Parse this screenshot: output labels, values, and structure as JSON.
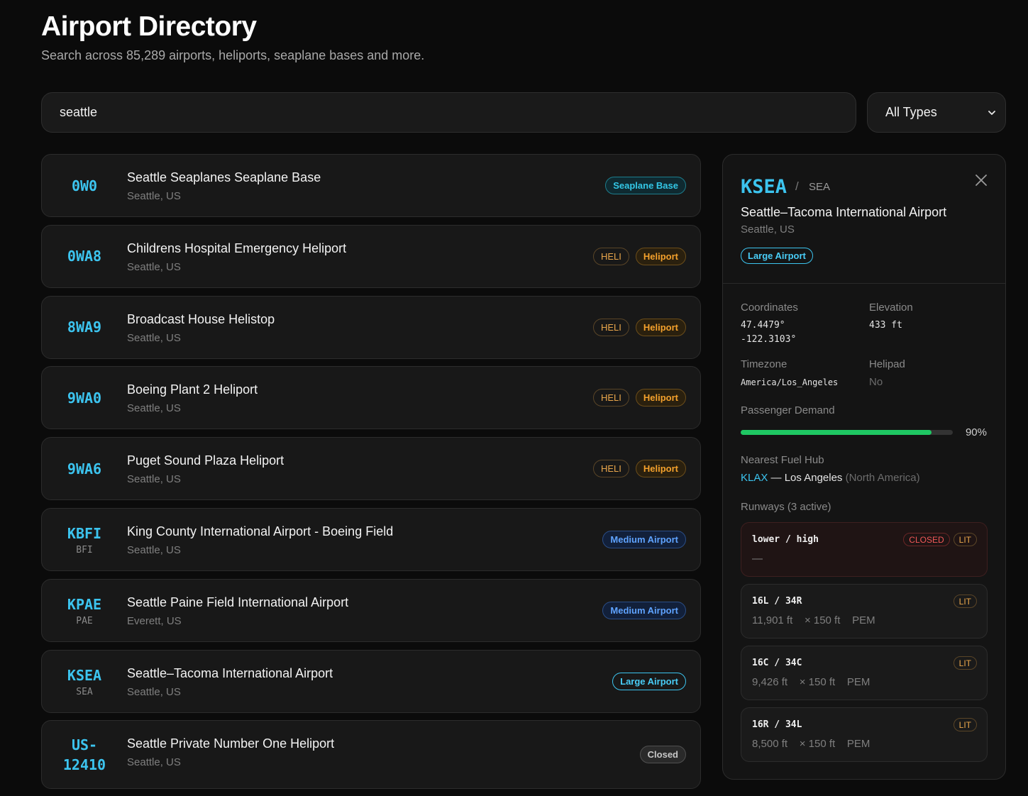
{
  "header": {
    "title": "Airport Directory",
    "subtitle": "Search across 85,289 airports, heliports, seaplane bases and more."
  },
  "search": {
    "value": "seattle",
    "placeholder": ""
  },
  "type_filter": {
    "selected": "All Types"
  },
  "results": [
    {
      "code": "0W0",
      "iata": "",
      "name": "Seattle Seaplanes Seaplane Base",
      "location": "Seattle, US",
      "badges": [
        {
          "text": "Seaplane Base",
          "kind": "seaplane"
        }
      ]
    },
    {
      "code": "0WA8",
      "iata": "",
      "name": "Childrens Hospital Emergency Heliport",
      "location": "Seattle, US",
      "badges": [
        {
          "text": "HELI",
          "kind": "helitag"
        },
        {
          "text": "Heliport",
          "kind": "heli"
        }
      ]
    },
    {
      "code": "8WA9",
      "iata": "",
      "name": "Broadcast House Helistop",
      "location": "Seattle, US",
      "badges": [
        {
          "text": "HELI",
          "kind": "helitag"
        },
        {
          "text": "Heliport",
          "kind": "heli"
        }
      ]
    },
    {
      "code": "9WA0",
      "iata": "",
      "name": "Boeing Plant 2 Heliport",
      "location": "Seattle, US",
      "badges": [
        {
          "text": "HELI",
          "kind": "helitag"
        },
        {
          "text": "Heliport",
          "kind": "heli"
        }
      ]
    },
    {
      "code": "9WA6",
      "iata": "",
      "name": "Puget Sound Plaza Heliport",
      "location": "Seattle, US",
      "badges": [
        {
          "text": "HELI",
          "kind": "helitag"
        },
        {
          "text": "Heliport",
          "kind": "heli"
        }
      ]
    },
    {
      "code": "KBFI",
      "iata": "BFI",
      "name": "King County International Airport - Boeing Field",
      "location": "Seattle, US",
      "badges": [
        {
          "text": "Medium Airport",
          "kind": "medium"
        }
      ]
    },
    {
      "code": "KPAE",
      "iata": "PAE",
      "name": "Seattle Paine Field International Airport",
      "location": "Everett, US",
      "badges": [
        {
          "text": "Medium Airport",
          "kind": "medium"
        }
      ]
    },
    {
      "code": "KSEA",
      "iata": "SEA",
      "name": "Seattle–Tacoma International Airport",
      "location": "Seattle, US",
      "badges": [
        {
          "text": "Large Airport",
          "kind": "large"
        }
      ]
    },
    {
      "code": "US-\n12410",
      "iata": "",
      "name": "Seattle Private Number One Heliport",
      "location": "Seattle, US",
      "badges": [
        {
          "text": "Closed",
          "kind": "closed"
        }
      ]
    }
  ],
  "detail": {
    "icao": "KSEA",
    "slash": "/",
    "iata": "SEA",
    "name": "Seattle–Tacoma International Airport",
    "location": "Seattle, US",
    "type": "Large Airport",
    "coordinates_label": "Coordinates",
    "lat": "47.4479°",
    "lon": "-122.3103°",
    "elevation_label": "Elevation",
    "elevation": "433 ft",
    "timezone_label": "Timezone",
    "timezone": "America/Los_Angeles",
    "helipad_label": "Helipad",
    "helipad": "No",
    "demand_label": "Passenger Demand",
    "demand_pct": 90,
    "demand_text": "90%",
    "fuel_label": "Nearest Fuel Hub",
    "fuel_code": "KLAX",
    "fuel_city": " — Los Angeles ",
    "fuel_region": "(North America)",
    "runways_label": "Runways (3 active)",
    "runways": [
      {
        "name": "lower / high",
        "dims": "—",
        "tags": [
          "CLOSED",
          "LIT"
        ],
        "closed": true
      },
      {
        "name": "16L / 34R",
        "dims": "11,901 ft    × 150 ft    PEM",
        "tags": [
          "LIT"
        ],
        "closed": false
      },
      {
        "name": "16C / 34C",
        "dims": "9,426 ft    × 150 ft    PEM",
        "tags": [
          "LIT"
        ],
        "closed": false
      },
      {
        "name": "16R / 34L",
        "dims": "8,500 ft    × 150 ft    PEM",
        "tags": [
          "LIT"
        ],
        "closed": false
      }
    ]
  },
  "colors": {
    "accent": "#3cc4ef",
    "demand_bar": "#1fc763",
    "heliport": "#f4a12c",
    "medium": "#5fa3ff",
    "closed_red": "#f05858"
  }
}
